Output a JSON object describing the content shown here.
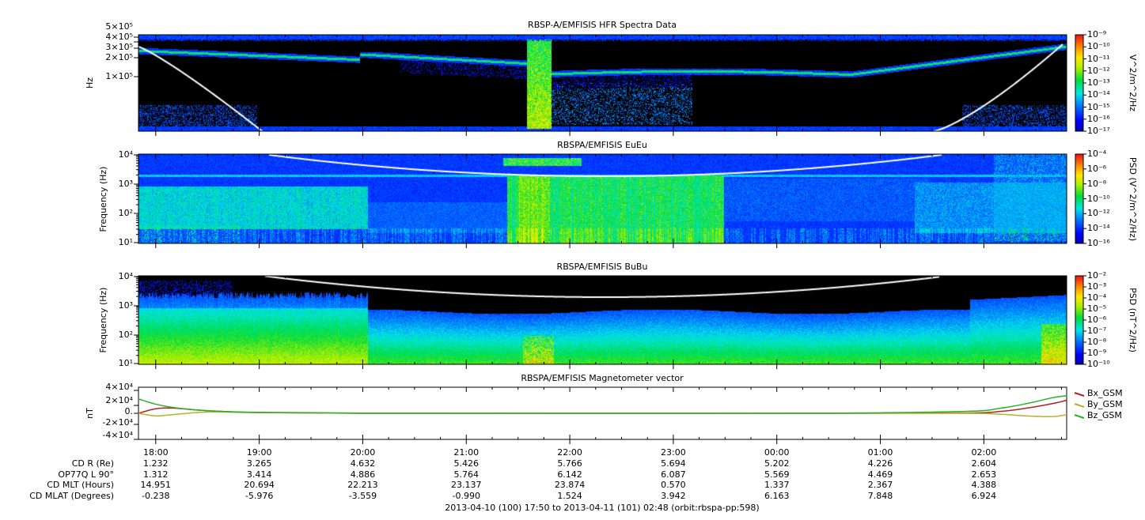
{
  "footer": "2013-04-10 (100) 17:50 to 2013-04-11 (101) 02:48 (orbit:rbspa-pp:598)",
  "ephemeris": {
    "times": [
      "18:00",
      "19:00",
      "20:00",
      "21:00",
      "22:00",
      "23:00",
      "00:00",
      "01:00",
      "02:00"
    ],
    "rows": [
      {
        "label": "CD R (Re)",
        "values": [
          "1.232",
          "3.265",
          "4.632",
          "5.426",
          "5.766",
          "5.694",
          "5.202",
          "4.226",
          "2.604"
        ]
      },
      {
        "label": "OP77Q L 90°",
        "values": [
          "1.312",
          "3.414",
          "4.886",
          "5.764",
          "6.142",
          "6.087",
          "5.569",
          "4.469",
          "2.653"
        ]
      },
      {
        "label": "CD MLT (Hours)",
        "values": [
          "14.951",
          "20.694",
          "22.213",
          "23.137",
          "23.874",
          "0.570",
          "1.337",
          "2.367",
          "4.388"
        ]
      },
      {
        "label": "CD MLAT (Degrees)",
        "values": [
          "-0.238",
          "-5.976",
          "-3.559",
          "-0.990",
          "1.524",
          "3.942",
          "6.163",
          "7.848",
          "6.924"
        ]
      }
    ]
  },
  "chart_data": [
    {
      "type": "heatmap",
      "title": "RBSP-A/EMFISIS  HFR Spectra Data",
      "ylabel": "Hz",
      "yscale": "log",
      "ylim": [
        10000,
        500000
      ],
      "ytick_labels": [
        "5×10⁵",
        "4×10⁵",
        "3×10⁵",
        "2×10⁵",
        "1×10⁵"
      ],
      "xlim": [
        "17:50",
        "02:48"
      ],
      "colorbar": {
        "label": "V^2/m^2/Hz",
        "ticks": [
          "10⁻⁹",
          "10⁻¹⁰",
          "10⁻¹¹",
          "10⁻¹²",
          "10⁻¹³",
          "10⁻¹⁴",
          "10⁻¹⁵",
          "10⁻¹⁶",
          "10⁻¹⁷"
        ],
        "range": [
          1e-17,
          1e-09
        ]
      }
    },
    {
      "type": "heatmap",
      "title": "RBSPA/EMFISIS  EuEu",
      "ylabel": "Frequency (Hz)",
      "yscale": "log",
      "ylim": [
        10,
        10000
      ],
      "ytick_labels": [
        "10⁴",
        "10³",
        "10²",
        "10¹"
      ],
      "xlim": [
        "17:50",
        "02:48"
      ],
      "colorbar": {
        "label": "PSD (V^2/m^2/Hz)",
        "ticks": [
          "10⁻⁴",
          "10⁻⁶",
          "10⁻⁸",
          "10⁻¹⁰",
          "10⁻¹²",
          "10⁻¹⁴",
          "10⁻¹⁶"
        ],
        "range": [
          1e-16,
          0.0001
        ]
      }
    },
    {
      "type": "heatmap",
      "title": "RBSPA/EMFISIS  BuBu",
      "ylabel": "Frequency (Hz)",
      "yscale": "log",
      "ylim": [
        10,
        10000
      ],
      "ytick_labels": [
        "10⁴",
        "10³",
        "10²",
        "10¹"
      ],
      "xlim": [
        "17:50",
        "02:48"
      ],
      "colorbar": {
        "label": "PSD (nT^2/Hz)",
        "ticks": [
          "10⁻²",
          "10⁻³",
          "10⁻⁴",
          "10⁻⁵",
          "10⁻⁶",
          "10⁻⁷",
          "10⁻⁸",
          "10⁻⁹",
          "10⁻¹⁰"
        ],
        "range": [
          1e-10,
          0.01
        ]
      }
    },
    {
      "type": "line",
      "title": "RBSPA/EMFISIS  Magnetometer vector",
      "ylabel": "nT",
      "ylim": [
        -40000,
        40000
      ],
      "ytick_labels": [
        "4×10⁴",
        "2×10⁴",
        "0.",
        "-2×10⁴",
        "-4×10⁴"
      ],
      "legend": "right",
      "x": [
        0,
        10,
        20,
        40,
        70,
        130,
        250,
        400,
        480,
        500,
        515,
        530,
        538
      ],
      "xunit": "minutes since 17:50",
      "series": [
        {
          "name": "Bx_GSM",
          "color": "#b22222",
          "values": [
            0,
            7000,
            8000,
            4000,
            1000,
            0,
            0,
            0,
            500,
            3000,
            8000,
            15000,
            20000
          ]
        },
        {
          "name": "By_GSM",
          "color": "#b8b030",
          "values": [
            0,
            -4000,
            -2000,
            2000,
            1000,
            0,
            0,
            0,
            0,
            -1500,
            -4000,
            -5000,
            -2000
          ]
        },
        {
          "name": "Bz_GSM",
          "color": "#2ab02a",
          "values": [
            22000,
            14000,
            9000,
            4000,
            1500,
            300,
            0,
            300,
            3000,
            8000,
            15000,
            24000,
            27000
          ]
        }
      ]
    }
  ],
  "colors": {
    "white_curve": "#ffffff",
    "background": "#000000"
  }
}
